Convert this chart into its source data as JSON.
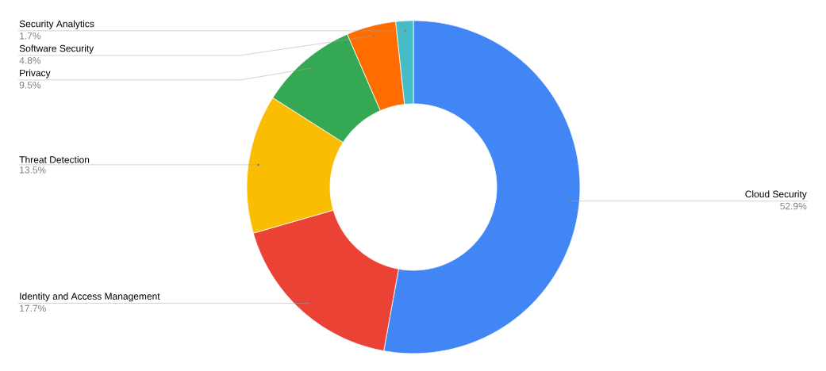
{
  "chart_data": {
    "type": "donut",
    "categories": [
      "Cloud Security",
      "Identity and Access Management",
      "Threat Detection",
      "Privacy",
      "Software Security",
      "Security Analytics"
    ],
    "values": [
      52.9,
      17.7,
      13.5,
      9.5,
      4.8,
      1.7
    ],
    "colors": [
      "#4285f4",
      "#ea4335",
      "#fbbc04",
      "#34a853",
      "#ff6d01",
      "#46bdc6"
    ],
    "value_labels": [
      "52.9%",
      "17.7%",
      "13.5%",
      "9.5%",
      "4.8%",
      "1.7%"
    ]
  }
}
